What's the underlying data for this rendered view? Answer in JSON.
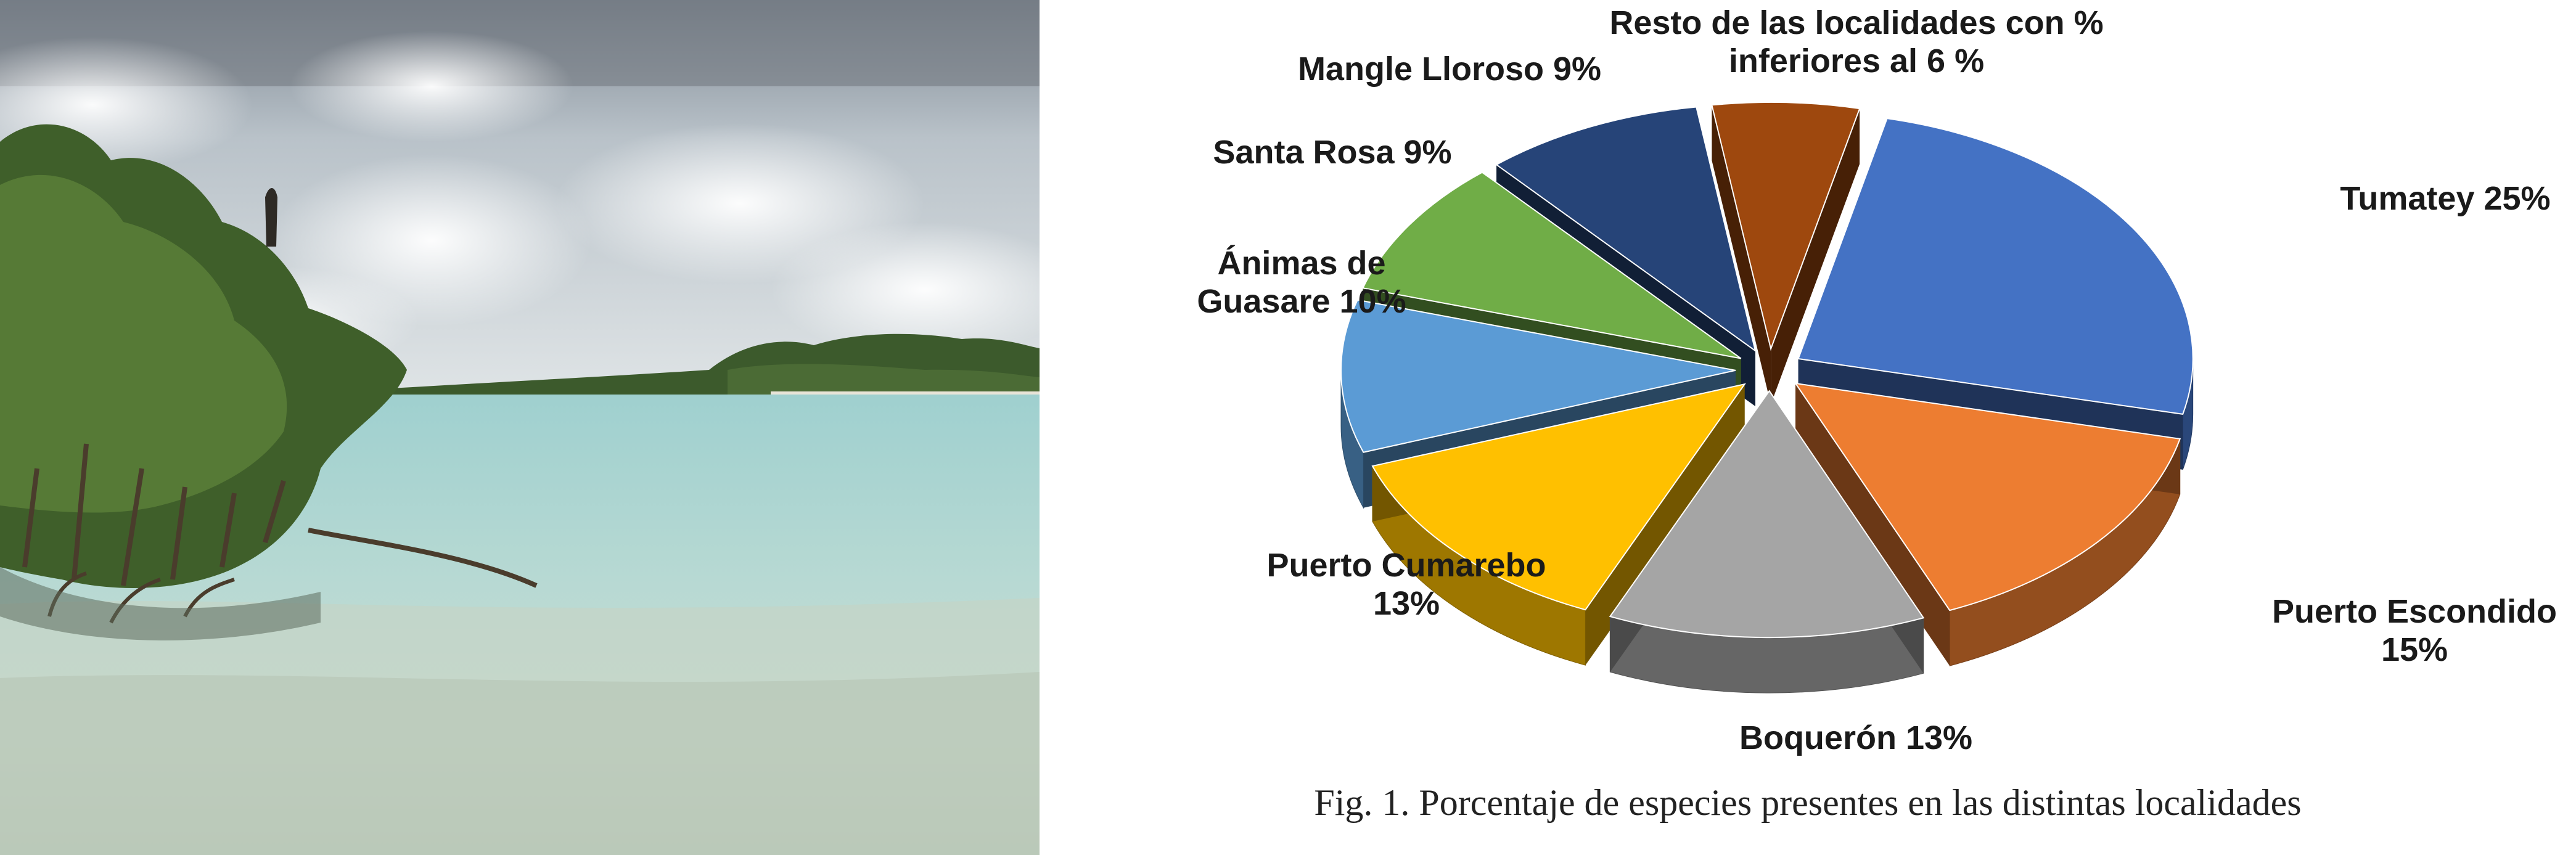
{
  "photo": {
    "description_icon": "mangrove-shore-photo"
  },
  "chart_data": {
    "type": "pie",
    "three_d": true,
    "exploded": true,
    "slices": [
      {
        "label": "Tumatey 25%",
        "lines": [
          "Tumatey 25%"
        ],
        "value": 25,
        "color": "#4472C4"
      },
      {
        "label": "Puerto Escondido 15%",
        "lines": [
          "Puerto Escondido",
          "15%"
        ],
        "value": 15,
        "color": "#ED7D31"
      },
      {
        "label": "Boquerón 13%",
        "lines": [
          "Boquerón 13%"
        ],
        "value": 13,
        "color": "#A5A5A5"
      },
      {
        "label": "Puerto Cumarebo 13%",
        "lines": [
          "Puerto Cumarebo",
          "13%"
        ],
        "value": 13,
        "color": "#FFC000"
      },
      {
        "label": "Ánimas de Guasare 10%",
        "lines": [
          "Ánimas de",
          "Guasare 10%"
        ],
        "value": 10,
        "color": "#5B9BD5"
      },
      {
        "label": "Santa Rosa 9%",
        "lines": [
          "Santa Rosa 9%"
        ],
        "value": 9,
        "color": "#70AD47"
      },
      {
        "label": "Mangle Lloroso 9%",
        "lines": [
          "Mangle Lloroso 9%"
        ],
        "value": 9,
        "color": "#264478"
      },
      {
        "label": "Resto de las localidades con % inferiores al 6 %",
        "lines": [
          "Resto de las localidades con %",
          "inferiores al 6 %"
        ],
        "value": 6,
        "color": "#9E480E"
      }
    ],
    "caption": "Fig. 1. Porcentaje de especies presentes en las distintas localidades"
  }
}
